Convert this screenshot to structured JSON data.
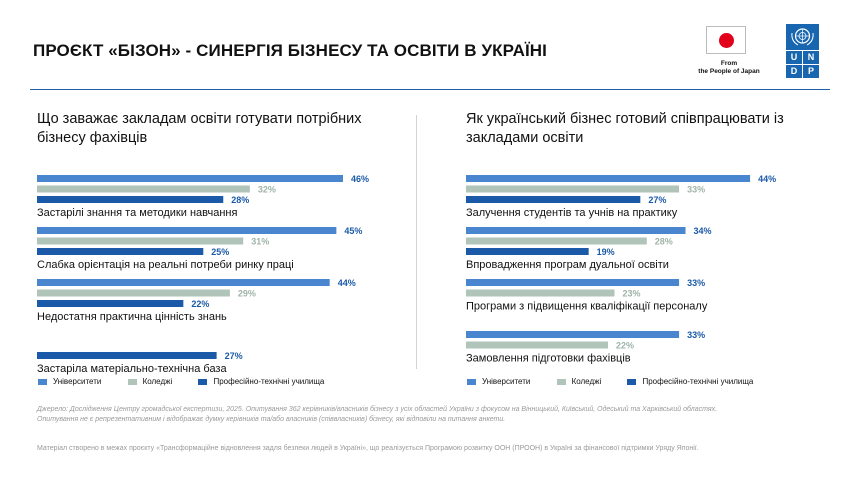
{
  "title": "ПРОЄКТ «БІЗОН» - СИНЕРГІЯ БІЗНЕСУ ТА ОСВІТИ В УКРАЇНІ",
  "logos": {
    "from_line1": "From",
    "from_line2": "the People of Japan",
    "undp_letters": [
      "U",
      "N",
      "D",
      "P"
    ],
    "colors": {
      "undp_blue": "#1866b0",
      "japan_red": "#e3001b"
    }
  },
  "legend": {
    "universities": "Університети",
    "colleges": "Коледжі",
    "vocational": "Професійно-технічні училища"
  },
  "colors": {
    "universities": "#4a86cf",
    "colleges": "#b0c4ba",
    "vocational": "#1a5aa8",
    "title_line": "#1f5fa8"
  },
  "chart_data": [
    {
      "type": "bar",
      "orientation": "horizontal",
      "title": "Що заважає закладам освіти готувати потрібних бізнесу фахівців",
      "series_names": [
        "Університети",
        "Коледжі",
        "Професійно-технічні училища"
      ],
      "categories": [
        {
          "label": "Застарілі знання та методики навчання",
          "values": [
            46,
            32,
            28
          ]
        },
        {
          "label": "Слабка орієнтація на реальні потреби ринку праці",
          "values": [
            45,
            31,
            25
          ]
        },
        {
          "label": "Недостатня практична цінність знань",
          "values": [
            44,
            29,
            22
          ]
        },
        {
          "label": "Застаріла матеріально-технічна база",
          "values": [
            null,
            null,
            27
          ]
        }
      ],
      "value_format": "percent"
    },
    {
      "type": "bar",
      "orientation": "horizontal",
      "title": "Як український бізнес готовий співпрацювати із закладами освіти",
      "series_names": [
        "Університети",
        "Коледжі",
        "Професійно-технічні училища"
      ],
      "categories": [
        {
          "label": "Залучення студентів та учнів на практику",
          "values": [
            44,
            33,
            27
          ]
        },
        {
          "label": "Впровадження програм дуальної освіти",
          "values": [
            34,
            28,
            19
          ]
        },
        {
          "label": "Програми з підвищення кваліфікації персоналу",
          "values": [
            33,
            23,
            null
          ]
        },
        {
          "label": "Замовлення підготовки фахівців",
          "values": [
            33,
            22,
            null
          ]
        }
      ],
      "value_format": "percent"
    }
  ],
  "source_line1": "Джерело: Дослідження Центру громадської експертизи, 2025. Опитування 362 керівників/власників бізнесу з усіх областей України з фокусом на Вінницький, Київський, Одеський та Харківський областях.",
  "source_line2": "Опитування не є репрезентативним і відображає думку керівників та/або власників (співвласників) бізнесу, які відповіли на питання анкети.",
  "footer": "Матеріал створено в межах проєкту «Трансформаційне відновлення задля безпеки людей в Україні», що реалізується Програмою розвитку ООН (ПРООН) в Україні за фінансової підтримки Уряду Японії."
}
